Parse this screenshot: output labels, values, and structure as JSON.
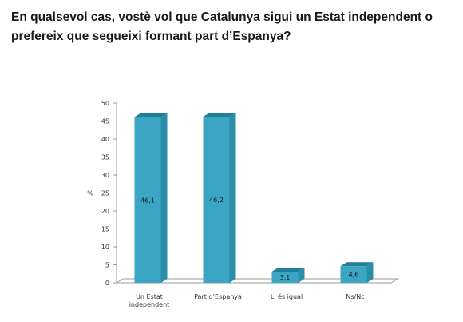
{
  "title_line1": "En qualsevol cas, vostè vol que Catalunya sigui un Estat independent o",
  "title_line2": "prefereix que segueixi formant part d’Espanya?",
  "chart_data": {
    "type": "bar",
    "ylabel": "%",
    "ylim": [
      0,
      50
    ],
    "yticks": [
      0,
      5,
      10,
      15,
      20,
      25,
      30,
      35,
      40,
      45,
      50
    ],
    "categories": [
      [
        "Un Estat",
        "independent"
      ],
      [
        "Part d’Espanya"
      ],
      [
        "Li és igual"
      ],
      [
        "Ns/Nc"
      ]
    ],
    "values": [
      46.1,
      46.2,
      3.1,
      4.6
    ],
    "data_labels": [
      "46,1",
      "46,2",
      "3,1",
      "4,6"
    ],
    "grid": false,
    "legend": "none",
    "colors": {
      "bar_front": "#3aa6c4",
      "bar_top": "#1f7f99",
      "bar_side": "#2b8ea9",
      "axis": "#9a9a9a",
      "text": "#333333"
    }
  }
}
